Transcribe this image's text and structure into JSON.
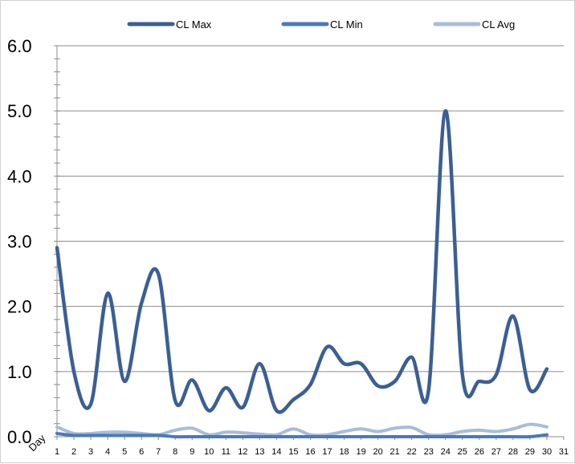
{
  "chart_data": {
    "type": "line",
    "title": "",
    "xlabel": "Day",
    "ylabel": "",
    "xlim": [
      1,
      31
    ],
    "ylim": [
      0,
      6
    ],
    "yticks": [
      "0.0",
      "1.0",
      "2.0",
      "3.0",
      "4.0",
      "5.0",
      "6.0"
    ],
    "xticks": [
      "1",
      "2",
      "3",
      "4",
      "5",
      "6",
      "7",
      "8",
      "9",
      "10",
      "11",
      "12",
      "13",
      "14",
      "15",
      "16",
      "17",
      "18",
      "19",
      "20",
      "21",
      "22",
      "23",
      "24",
      "25",
      "26",
      "27",
      "28",
      "29",
      "30",
      "31"
    ],
    "grid": true,
    "legend": "top",
    "x": [
      1,
      2,
      3,
      4,
      5,
      6,
      7,
      8,
      9,
      10,
      11,
      12,
      13,
      14,
      15,
      16,
      17,
      18,
      19,
      20,
      21,
      22,
      23,
      24,
      25,
      26,
      27,
      28,
      29,
      30
    ],
    "series": [
      {
        "name": "CL Max",
        "color": "#3a5f94",
        "values": [
          2.9,
          1.0,
          0.5,
          2.2,
          0.85,
          2.05,
          2.5,
          0.55,
          0.87,
          0.4,
          0.75,
          0.45,
          1.12,
          0.4,
          0.57,
          0.8,
          1.38,
          1.12,
          1.12,
          0.78,
          0.85,
          1.22,
          0.72,
          5.0,
          0.95,
          0.85,
          0.95,
          1.85,
          0.72,
          1.04
        ]
      },
      {
        "name": "CL Min",
        "color": "#4a7ab8",
        "values": [
          0.05,
          0.02,
          0.02,
          0.02,
          0.02,
          0.02,
          0.02,
          0.0,
          0.0,
          0.0,
          0.0,
          0.0,
          0.0,
          0.0,
          0.0,
          0.0,
          0.0,
          0.0,
          0.0,
          0.0,
          0.0,
          0.0,
          0.0,
          0.0,
          0.0,
          0.0,
          0.0,
          0.0,
          0.0,
          0.03
        ]
      },
      {
        "name": "CL Avg",
        "color": "#a9bcd9",
        "values": [
          0.15,
          0.05,
          0.05,
          0.07,
          0.07,
          0.05,
          0.03,
          0.1,
          0.13,
          0.03,
          0.07,
          0.06,
          0.04,
          0.03,
          0.12,
          0.03,
          0.03,
          0.08,
          0.12,
          0.08,
          0.13,
          0.14,
          0.03,
          0.03,
          0.08,
          0.1,
          0.08,
          0.12,
          0.19,
          0.15
        ]
      }
    ]
  }
}
